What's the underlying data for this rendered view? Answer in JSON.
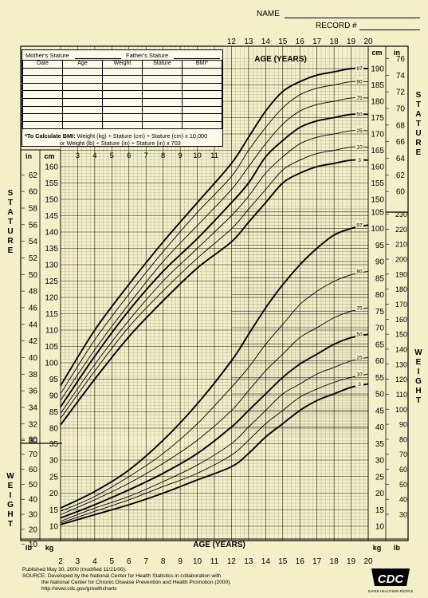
{
  "header": {
    "name_label": "NAME",
    "record_label": "RECORD #"
  },
  "form": {
    "mothers_stature_label": "Mother's Stature",
    "fathers_stature_label": "Father's Stature",
    "columns": [
      "Date",
      "Age",
      "Weight",
      "Stature",
      "BMI*"
    ],
    "row_count": 8,
    "bmi_title": "*To Calculate BMI:",
    "bmi_formula_1": "Weight (kg) ÷ Stature (cm) ÷ Stature (cm) x 10,000",
    "bmi_formula_2": "or Weight (lb) ÷ Stature (in) ÷ Stature (in) x 703"
  },
  "labels": {
    "stature_vertical": [
      "S",
      "T",
      "A",
      "T",
      "U",
      "R",
      "E"
    ],
    "weight_vertical": [
      "W",
      "E",
      "I",
      "G",
      "H",
      "T"
    ],
    "unit_in": "in",
    "unit_cm": "cm",
    "unit_lb": "lb",
    "unit_kg": "kg"
  },
  "footer": {
    "published": "Published May 30, 2000 (modified 11/21/00).",
    "source_1": "SOURCE: Developed by the National Center for Health Statistics in collaboration with",
    "source_2": "the National Center for Chronic Disease Prevention and Health Promotion (2000).",
    "url": "http://www.cdc.gov/growthcharts",
    "logo_text": "CDC",
    "logo_tagline": "SAFER·HEALTHIER·PEOPLE"
  },
  "chart_data": [
    {
      "type": "line",
      "title": "",
      "xlabel": "AGE (YEARS)",
      "ylabel": "STATURE",
      "y_unit_primary": "cm",
      "y_unit_secondary": "in",
      "xlim": [
        2,
        20
      ],
      "ylim": [
        77,
        193
      ],
      "grid": true,
      "x_ticks_top": [
        12,
        13,
        14,
        15,
        16,
        17,
        18,
        19,
        20
      ],
      "x_ticks_inner": [
        3,
        4,
        5,
        6,
        7,
        8,
        9,
        10,
        11
      ],
      "y_ticks_cm_left": [
        80,
        85,
        90,
        95,
        100,
        105,
        110,
        115,
        120,
        125,
        130,
        135,
        140,
        145,
        150,
        155,
        160
      ],
      "y_ticks_in_left": [
        30,
        32,
        34,
        36,
        38,
        40,
        42,
        44,
        46,
        48,
        50,
        52,
        54,
        56,
        58,
        60,
        62
      ],
      "y_ticks_cm_right": [
        150,
        155,
        160,
        165,
        170,
        175,
        180,
        185,
        190
      ],
      "y_ticks_in_right": [
        60,
        62,
        64,
        66,
        68,
        70,
        72,
        74,
        76
      ],
      "x": [
        2,
        4,
        6,
        8,
        10,
        12,
        13,
        14,
        15,
        16,
        17,
        18,
        19,
        20
      ],
      "series": [
        {
          "name": "97",
          "values": [
            93,
            110,
            124,
            137,
            149,
            161,
            169,
            177,
            183,
            186,
            188,
            189,
            190,
            190
          ]
        },
        {
          "name": "90",
          "values": [
            90.5,
            107,
            121,
            134,
            146,
            157,
            165,
            172,
            178,
            182,
            184,
            185,
            186,
            186
          ]
        },
        {
          "name": "75",
          "values": [
            88.5,
            104,
            118,
            131,
            142,
            153,
            160,
            167,
            173,
            177,
            179,
            180,
            181,
            181
          ]
        },
        {
          "name": "50",
          "values": [
            86.5,
            102,
            116,
            128,
            138,
            149,
            155,
            163,
            168,
            172,
            174,
            175,
            176,
            176
          ]
        },
        {
          "name": "25",
          "values": [
            84.5,
            99.5,
            113,
            125,
            135,
            145,
            151,
            158,
            163,
            167,
            169,
            170,
            171,
            171
          ]
        },
        {
          "name": "10",
          "values": [
            83,
            97.5,
            111,
            122,
            132,
            141,
            147,
            153,
            159,
            162,
            164,
            165,
            166,
            166
          ]
        },
        {
          "name": "3",
          "values": [
            81,
            95,
            108,
            119,
            129,
            137,
            143,
            149,
            155,
            158,
            160,
            161,
            162,
            162
          ]
        }
      ]
    },
    {
      "type": "line",
      "title": "",
      "xlabel": "AGE (YEARS)",
      "ylabel": "WEIGHT",
      "y_unit_primary": "kg",
      "y_unit_secondary": "lb",
      "xlim": [
        2,
        20
      ],
      "ylim": [
        7,
        107
      ],
      "grid": true,
      "x_ticks_bottom": [
        2,
        3,
        4,
        5,
        6,
        7,
        8,
        9,
        10,
        11,
        12,
        13,
        14,
        15,
        16,
        17,
        18,
        19,
        20
      ],
      "y_ticks_kg_left": [
        10,
        15,
        20,
        25,
        30,
        35
      ],
      "y_ticks_lb_left": [
        10,
        20,
        30,
        40,
        50,
        60,
        70,
        80
      ],
      "y_ticks_kg_right": [
        10,
        15,
        20,
        25,
        30,
        35,
        40,
        45,
        50,
        55,
        60,
        65,
        70,
        75,
        80,
        85,
        90,
        95,
        100,
        105
      ],
      "y_ticks_lb_right": [
        30,
        40,
        50,
        60,
        70,
        80,
        90,
        100,
        110,
        120,
        130,
        140,
        150,
        160,
        170,
        180,
        190,
        200,
        210,
        220,
        230
      ],
      "x": [
        2,
        4,
        6,
        8,
        10,
        12,
        13,
        14,
        15,
        16,
        17,
        18,
        19,
        20
      ],
      "series": [
        {
          "name": "97",
          "values": [
            15.5,
            20.5,
            27,
            36,
            47,
            60,
            68,
            76,
            83,
            89,
            94,
            98,
            100,
            101
          ]
        },
        {
          "name": "90",
          "values": [
            14.5,
            19,
            25,
            32,
            41,
            52,
            58,
            65,
            71,
            77,
            81,
            84,
            86,
            87
          ]
        },
        {
          "name": "75",
          "values": [
            13.5,
            18,
            23,
            29,
            36,
            45,
            51,
            57,
            62,
            67,
            70,
            73,
            75,
            76
          ]
        },
        {
          "name": "50",
          "values": [
            12.5,
            16.5,
            21,
            26,
            32,
            40,
            45,
            50,
            55,
            59,
            62,
            65,
            67,
            68
          ]
        },
        {
          "name": "25",
          "values": [
            11.5,
            15.5,
            19,
            23.5,
            28.5,
            35,
            40,
            45,
            50,
            53,
            56,
            58,
            60,
            61
          ]
        },
        {
          "name": "10",
          "values": [
            11,
            14.5,
            18,
            22,
            26,
            31.5,
            36,
            41,
            45,
            49,
            51.5,
            53.5,
            55,
            56
          ]
        },
        {
          "name": "3",
          "values": [
            10.5,
            13.5,
            16.5,
            20,
            24,
            28,
            32,
            37,
            41,
            45,
            48,
            50,
            52,
            53
          ]
        }
      ]
    }
  ]
}
